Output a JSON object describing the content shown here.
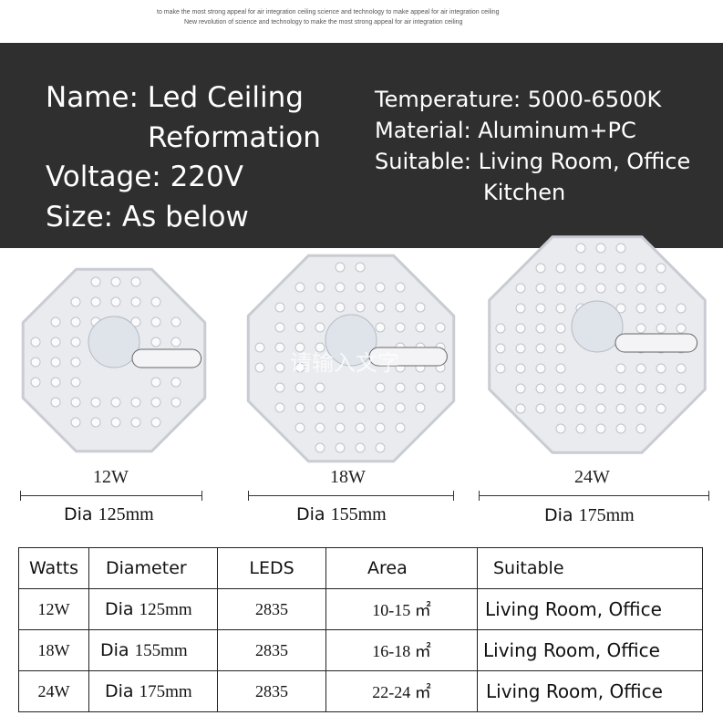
{
  "tagline": [
    "to make the most strong appeal for air integration ceiling science and technology  to make appeal for air integration ceiling",
    "New revolution of science and technology  to make the most strong appeal for air integration ceiling"
  ],
  "specs": {
    "name": "Name: Led Ceiling",
    "name2": "Reformation",
    "voltage": "Voltage: 220V",
    "size": "Size: As below",
    "temperature": "Temperature: 5000-6500K",
    "material": "Material: Aluminum+PC",
    "suitable": "Suitable: Living Room, Office",
    "suitable2": "Kitchen"
  },
  "watermark": "请输入文字",
  "products": [
    {
      "watt": "12W",
      "dia_prefix": "Dia",
      "dia": "125mm"
    },
    {
      "watt": "18W",
      "dia_prefix": "Dia",
      "dia": "155mm"
    },
    {
      "watt": "24W",
      "dia_prefix": "Dia",
      "dia": "175mm"
    }
  ],
  "table": {
    "headers": [
      "Watts",
      "Diameter",
      "LEDS",
      "Area",
      "Suitable"
    ],
    "rows": [
      {
        "watts": "12W",
        "dia_prefix": "Dia",
        "dia": "125mm",
        "leds": "2835",
        "area": "10-15  ㎡",
        "suitable": "Living Room, Office"
      },
      {
        "watts": "18W",
        "dia_prefix": "Dia",
        "dia": "155mm",
        "leds": "2835",
        "area": "16-18  ㎡",
        "suitable": "Living Room, Office"
      },
      {
        "watts": "24W",
        "dia_prefix": "Dia",
        "dia": "175mm",
        "leds": "2835",
        "area": "22-24  ㎡",
        "suitable": "Living Room, Office"
      }
    ]
  }
}
